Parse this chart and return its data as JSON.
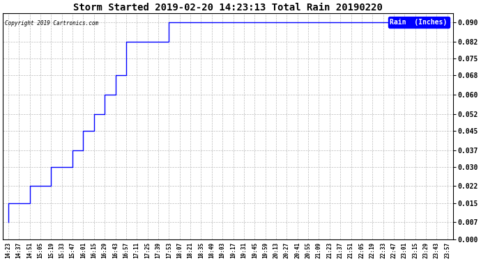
{
  "title": "Storm Started 2019-02-20 14:23:13 Total Rain 20190220",
  "copyright_text": "Copyright 2019 Cartronics.com",
  "legend_label": "Rain  (Inches)",
  "line_color": "#0000ff",
  "background_color": "#ffffff",
  "grid_color": "#bbbbbb",
  "yticks": [
    0.0,
    0.007,
    0.015,
    0.022,
    0.03,
    0.037,
    0.045,
    0.052,
    0.06,
    0.068,
    0.075,
    0.082,
    0.09
  ],
  "ylim": [
    0.0,
    0.0937
  ],
  "xtick_labels": [
    "14:23",
    "14:37",
    "14:51",
    "15:05",
    "15:19",
    "15:33",
    "15:47",
    "16:01",
    "16:15",
    "16:29",
    "16:43",
    "16:57",
    "17:11",
    "17:25",
    "17:39",
    "17:53",
    "18:07",
    "18:21",
    "18:35",
    "18:49",
    "19:03",
    "19:17",
    "19:31",
    "19:45",
    "19:59",
    "20:13",
    "20:27",
    "20:41",
    "20:55",
    "21:09",
    "21:23",
    "21:37",
    "21:51",
    "22:05",
    "22:19",
    "22:33",
    "22:47",
    "23:01",
    "23:15",
    "23:29",
    "23:43",
    "23:57"
  ],
  "x_data": [
    0,
    1,
    2,
    3,
    4,
    5,
    6,
    7,
    8,
    9,
    10,
    11,
    12,
    13,
    14,
    15,
    16,
    17,
    18,
    19,
    20,
    21,
    22,
    23,
    24,
    25,
    26,
    27,
    28,
    29,
    30,
    31,
    32,
    33,
    34,
    35,
    36,
    37,
    38,
    39,
    40,
    41
  ],
  "y_data": [
    0.007,
    0.015,
    0.015,
    0.022,
    0.022,
    0.03,
    0.03,
    0.037,
    0.045,
    0.052,
    0.06,
    0.068,
    0.082,
    0.082,
    0.082,
    0.082,
    0.09,
    0.09,
    0.09,
    0.09,
    0.09,
    0.09,
    0.09,
    0.09,
    0.09,
    0.09,
    0.09,
    0.09,
    0.09,
    0.09,
    0.09,
    0.09,
    0.09,
    0.09,
    0.09,
    0.09,
    0.09,
    0.09,
    0.09,
    0.09,
    0.09,
    0.09
  ]
}
